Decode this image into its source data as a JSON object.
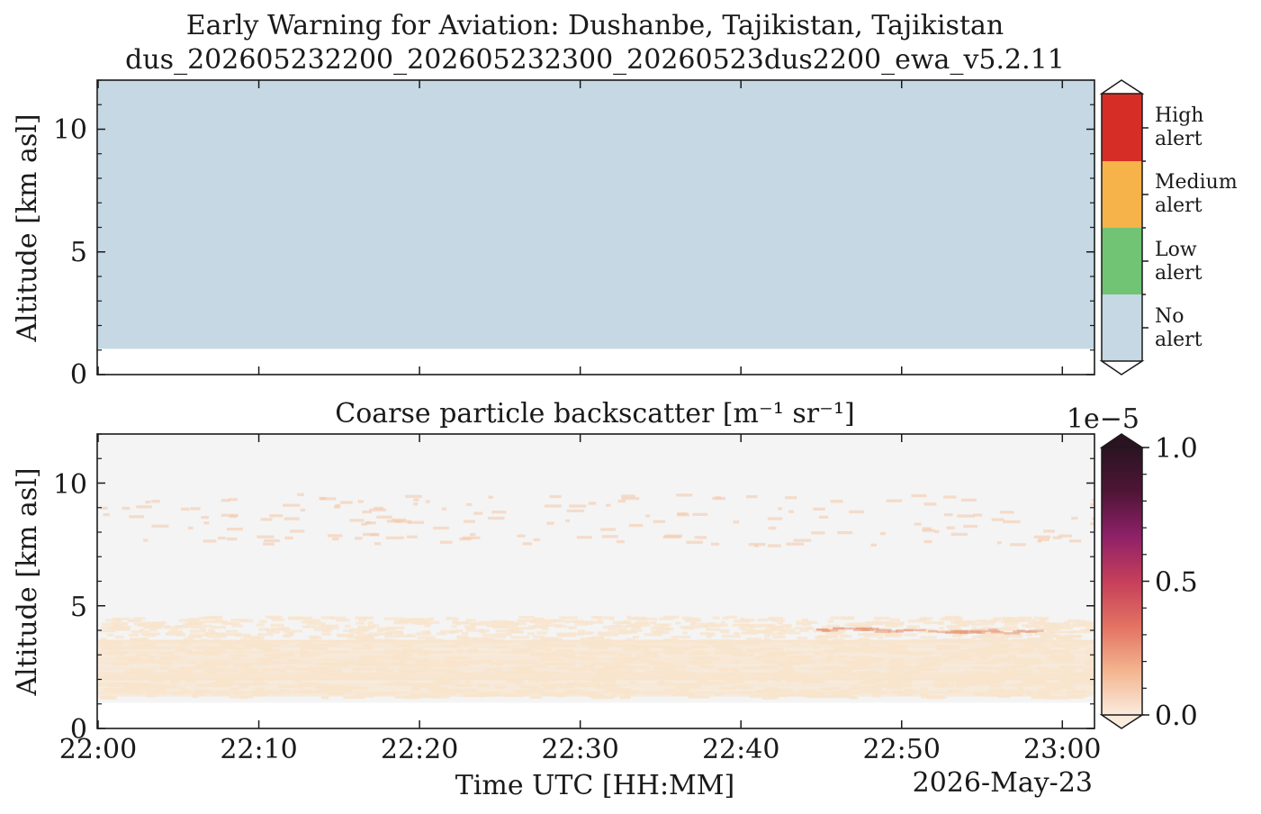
{
  "figure": {
    "title_line1": "Early Warning for Aviation: Dushanbe, Tajikistan, Tajikistan",
    "title_line2": "dus_202605232200_202605232300_20260523dus2200_ewa_v5.2.11"
  },
  "chart_data": [
    {
      "type": "heatmap",
      "ylabel": "Altitude [km asl]",
      "x_range": [
        "22:00",
        "23:02"
      ],
      "ylim": [
        0,
        12
      ],
      "y_ticks": [
        0,
        5,
        10
      ],
      "x_ticks_hidden": true,
      "field": {
        "category": "No alert",
        "altitude_from_km": 1.05,
        "altitude_to_km": 12,
        "color": "#c5d8e3"
      },
      "colorbar": {
        "kind": "categorical",
        "categories": [
          {
            "line1": "No",
            "line2": "alert",
            "color": "#c5d8e3"
          },
          {
            "line1": "Low",
            "line2": "alert",
            "color": "#71c474"
          },
          {
            "line1": "Medium",
            "line2": "alert",
            "color": "#f6b349"
          },
          {
            "line1": "High",
            "line2": "alert",
            "color": "#d62e26"
          }
        ]
      }
    },
    {
      "type": "heatmap",
      "title": "Coarse particle backscatter [m⁻¹ sr⁻¹]",
      "xlabel": "Time UTC [HH:MM]",
      "date_label": "2026-May-23",
      "ylabel": "Altitude [km asl]",
      "x_range": [
        "22:00",
        "23:02"
      ],
      "x_ticks": [
        "22:00",
        "22:10",
        "22:20",
        "22:30",
        "22:40",
        "22:50",
        "23:00"
      ],
      "ylim": [
        0,
        12
      ],
      "y_ticks": [
        0,
        5,
        10
      ],
      "background_color": "#f4f4f4",
      "data_from_km": 1.05,
      "layers": [
        {
          "from_km": 1.3,
          "to_km": 3.5,
          "level": "0.0–0.1e-5",
          "color": "#f8e4cc"
        },
        {
          "from_km": 3.5,
          "to_km": 4.6,
          "level": "0.0–0.1e-5",
          "color": "#f8e4cc"
        },
        {
          "from_km": 7.5,
          "to_km": 9.6,
          "level": "0.1e-5",
          "color": "#f4c7a5"
        },
        {
          "from_km": 4.0,
          "to_km": 4.4,
          "level": "0.2e-5",
          "color": "#e89878"
        }
      ],
      "colorbar": {
        "kind": "continuous",
        "scale_label": "1e−5",
        "ticks": [
          0.0,
          0.5,
          1.0
        ],
        "tick_labels": [
          "0.0",
          "0.5",
          "1.0"
        ],
        "stops": [
          "#faebdd",
          "#f3b48e",
          "#e37163",
          "#c53f5a",
          "#8f2169",
          "#4f1536",
          "#2a1422"
        ]
      }
    }
  ]
}
